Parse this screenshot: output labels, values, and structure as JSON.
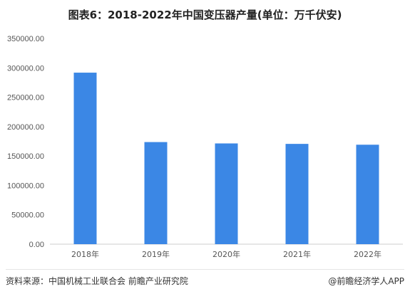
{
  "title": "图表6：2018-2022年中国变压器产量(单位：万千伏安)",
  "source": "资料来源：中国机械工业联合会 前瞻产业研究院",
  "brand": "@前瞻经济学人APP",
  "colors": {
    "bar": "#3b87e5",
    "axis": "#cccccc",
    "tick_text": "#555555"
  },
  "chart_data": {
    "type": "bar",
    "title": "图表6：2018-2022年中国变压器产量(单位：万千伏安)",
    "xlabel": "",
    "ylabel": "",
    "categories": [
      "2018年",
      "2019年",
      "2020年",
      "2021年",
      "2022年"
    ],
    "values": [
      291800,
      173700,
      171400,
      170600,
      169200
    ],
    "ylim": [
      0,
      350000
    ],
    "yticks": [
      "0.00",
      "50000.00",
      "100000.00",
      "150000.00",
      "200000.00",
      "250000.00",
      "300000.00",
      "350000.00"
    ],
    "grid": false,
    "legend": "none"
  }
}
